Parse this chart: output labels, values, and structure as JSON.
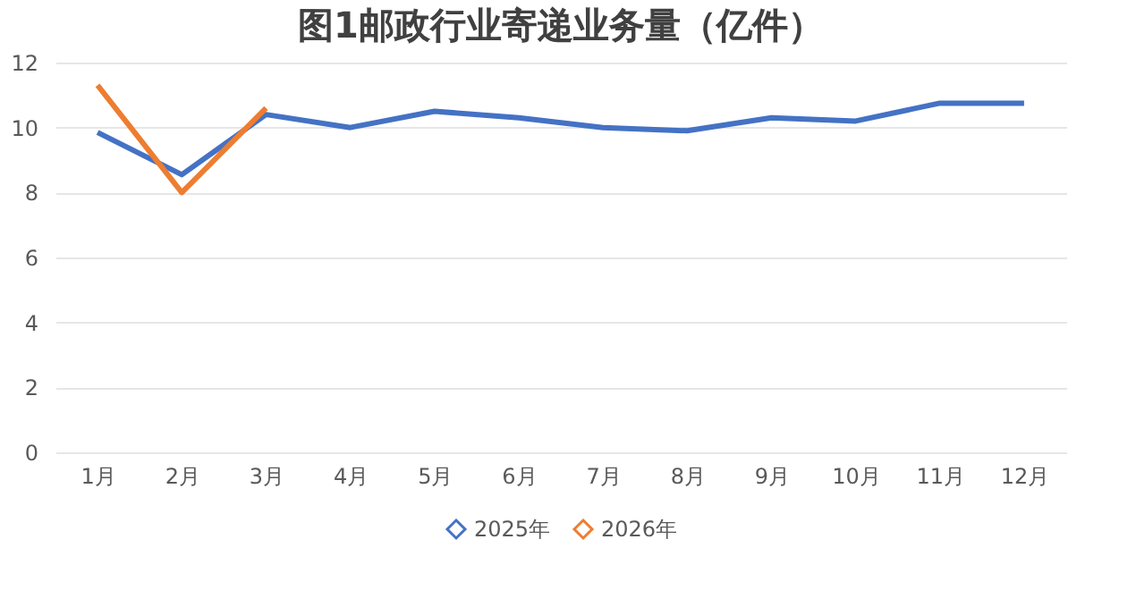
{
  "chart_data": {
    "type": "line",
    "title": "图1邮政行业寄递业务量（亿件）",
    "categories": [
      "1月",
      "2月",
      "3月",
      "4月",
      "5月",
      "6月",
      "7月",
      "8月",
      "9月",
      "10月",
      "11月",
      "12月"
    ],
    "series": [
      {
        "name": "2025年",
        "color": "#4472c4",
        "values": [
          9.85,
          8.55,
          10.4,
          10.0,
          10.5,
          10.3,
          10.0,
          9.9,
          10.3,
          10.2,
          10.75,
          10.75
        ]
      },
      {
        "name": "2026年",
        "color": "#ed7d31",
        "values": [
          11.3,
          8.0,
          10.6,
          null,
          null,
          null,
          null,
          null,
          null,
          null,
          null,
          null
        ]
      }
    ],
    "ylim": [
      0,
      12
    ],
    "yticks": [
      0,
      2,
      4,
      6,
      8,
      10,
      12
    ],
    "grid": "y",
    "legend": "bottom"
  }
}
